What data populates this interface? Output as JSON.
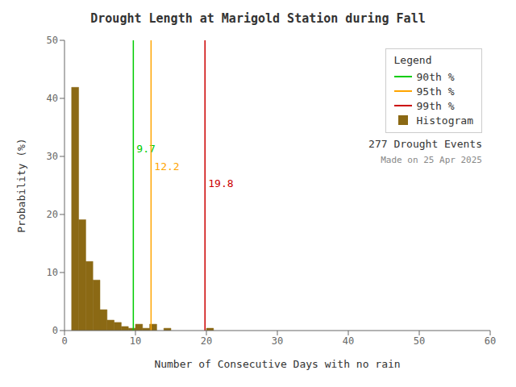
{
  "chart_data": {
    "type": "histogram",
    "title": "Drought Length at Marigold Station during Fall",
    "xlabel": "Number of Consecutive Days with no rain",
    "ylabel": "Probability (%)",
    "xlim": [
      0,
      60
    ],
    "ylim": [
      0,
      50
    ],
    "xticks": [
      0,
      10,
      20,
      30,
      40,
      50,
      60
    ],
    "yticks": [
      0,
      10,
      20,
      30,
      40,
      50
    ],
    "grid": false,
    "legend": "upper right",
    "legend_title": "Legend",
    "series": [
      {
        "name": "90th %",
        "type": "vline",
        "color": "#00cc00",
        "x": 9.7,
        "data_labels": true
      },
      {
        "name": "95th %",
        "type": "vline",
        "color": "#ffa500",
        "x": 12.2,
        "data_labels": true
      },
      {
        "name": "99th %",
        "type": "vline",
        "color": "#cc0000",
        "x": 19.8,
        "data_labels": true
      },
      {
        "name": "Histogram",
        "type": "histogram",
        "color": "#8B6914",
        "bins": [
          1,
          2,
          3,
          4,
          5,
          6,
          7,
          8,
          9,
          10,
          11,
          12,
          13,
          14,
          15,
          16,
          17,
          18,
          19,
          20,
          21
        ],
        "values": [
          41.9,
          19.1,
          11.9,
          8.7,
          3.6,
          1.8,
          1.4,
          0.7,
          0.4,
          1.1,
          0.4,
          1.1,
          0.0,
          0.4,
          0.0,
          0.0,
          0.0,
          0.0,
          0.0,
          0.4
        ]
      }
    ],
    "annotations": [
      "277 Drought Events",
      "Made on 25 Apr 2025"
    ]
  }
}
